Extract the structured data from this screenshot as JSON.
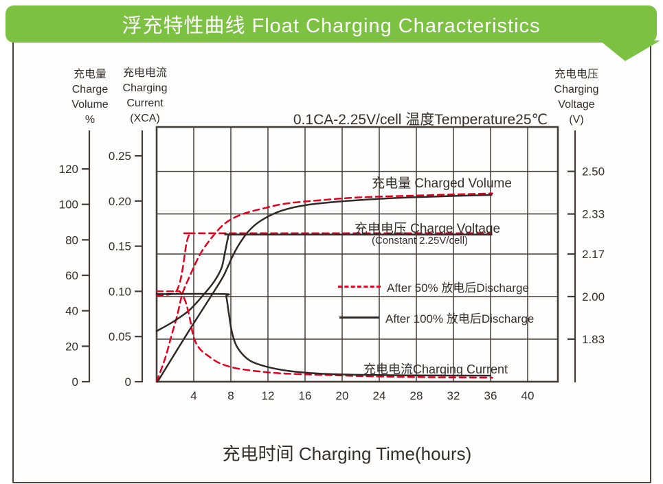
{
  "banner": {
    "title": "浮充特性曲线  Float Charging Characteristics",
    "color": "#7cc142"
  },
  "axis_titles": {
    "volume": "充电量\nCharge\nVolume\n%",
    "current": "充电电流\nCharging\nCurrent\n(XCA)",
    "voltage": "充电电压\nCharging\nVoltage\n(V)"
  },
  "condition": "0.1CA-2.25V/cell  温度Temperature25℃",
  "xlabel": "充电时间  Charging Time(hours)",
  "annotations": {
    "charged_volume": "充电量 Charged Volume",
    "charge_voltage": "充电电压 Charge Voltage",
    "constant_note": "(Constant 2.25V/cell)",
    "legend_50": "After 50% 放电后Discharge",
    "legend_100": "After 100% 放电后Discharge",
    "charging_current": "充电电流Charging Current"
  },
  "colors": {
    "accent_green": "#7cc142",
    "curve_red": "#e4001e",
    "curve_black": "#2f2925",
    "grid": "#453c35",
    "text": "#352e29"
  },
  "chart_data": {
    "type": "line",
    "title": "Float Charging Characteristics 浮充特性曲线",
    "condition": "0.1CA-2.25V/cell, Temperature 25°C",
    "xlabel": "Charging Time (hours)",
    "x_axis": {
      "ticks": [
        4,
        8,
        12,
        16,
        20,
        24,
        28,
        32,
        36,
        40
      ],
      "range": [
        0,
        43.3
      ],
      "grid": true
    },
    "y_axis_volume": {
      "label": "Charge Volume (%)",
      "ticks": [
        "0",
        "20",
        "40",
        "60",
        "80",
        "100",
        "120"
      ],
      "range": [
        0,
        143
      ]
    },
    "y_axis_current": {
      "label": "Charging Current (XCA)",
      "ticks": [
        "0",
        "0.05",
        "0.10",
        "0.15",
        "0.20",
        "0.25"
      ],
      "range": [
        0,
        0.282
      ]
    },
    "y_axis_voltage": {
      "label": "Charging Voltage (V)",
      "ticks": [
        "2.50",
        "2.33",
        "2.17",
        "2.00",
        "1.83"
      ],
      "range": [
        1.66,
        2.68
      ],
      "grid": true
    },
    "series": [
      {
        "name": "Charged Volume - After 50% Discharge",
        "unit": "percent",
        "color": "#e4001e",
        "dash": "9 6",
        "points": [
          [
            0,
            0
          ],
          [
            0.9,
            13
          ],
          [
            1.6,
            26
          ],
          [
            2.2,
            37
          ],
          [
            2.8,
            50
          ],
          [
            3.7,
            61
          ],
          [
            4.7,
            72
          ],
          [
            5.9,
            81
          ],
          [
            7.3,
            89
          ],
          [
            9,
            94
          ],
          [
            11.3,
            97.5
          ],
          [
            14,
            100.5
          ],
          [
            18,
            102.5
          ],
          [
            22,
            104
          ],
          [
            28,
            105
          ],
          [
            32,
            105.6
          ],
          [
            36.2,
            106.2
          ]
        ]
      },
      {
        "name": "Charged Volume - After 100% Discharge",
        "unit": "percent",
        "color": "#2f2925",
        "dash": "",
        "points": [
          [
            0.1,
            0
          ],
          [
            3.4,
            28
          ],
          [
            6.8,
            56
          ],
          [
            7.6,
            64
          ],
          [
            8.3,
            72
          ],
          [
            9.2,
            80
          ],
          [
            10.2,
            86.5
          ],
          [
            11.6,
            92
          ],
          [
            13.5,
            96.5
          ],
          [
            16,
            99.5
          ],
          [
            19.5,
            101.5
          ],
          [
            24.5,
            103.3
          ],
          [
            30.5,
            104.5
          ],
          [
            36.1,
            105.3
          ]
        ]
      },
      {
        "name": "Charge Voltage - After 50% Discharge (constant 2.25 V/cell)",
        "unit": "volt",
        "color": "#e4001e",
        "dash": "9 6",
        "points": [
          [
            0,
            2.005
          ],
          [
            1.3,
            2.008
          ],
          [
            2.0,
            2.016
          ],
          [
            2.45,
            2.05
          ],
          [
            2.75,
            2.1
          ],
          [
            3.0,
            2.16
          ],
          [
            3.2,
            2.21
          ],
          [
            3.45,
            2.243
          ],
          [
            3.7,
            2.252
          ],
          [
            4.3,
            2.253
          ],
          [
            20,
            2.253
          ],
          [
            36.1,
            2.253
          ]
        ]
      },
      {
        "name": "Charge Voltage - After 100% Discharge (constant 2.25 V/cell)",
        "unit": "volt",
        "color": "#2f2925",
        "dash": "",
        "points": [
          [
            0,
            1.862
          ],
          [
            1.8,
            1.9
          ],
          [
            3.5,
            1.945
          ],
          [
            5.0,
            2.005
          ],
          [
            6.2,
            2.06
          ],
          [
            7.0,
            2.115
          ],
          [
            7.4,
            2.183
          ],
          [
            7.65,
            2.228
          ],
          [
            7.82,
            2.247
          ],
          [
            8.4,
            2.248
          ],
          [
            20,
            2.248
          ],
          [
            36.1,
            2.248
          ]
        ]
      },
      {
        "name": "Charging Current - After 50% Discharge",
        "unit": "ca",
        "color": "#e4001e",
        "dash": "9 6",
        "points": [
          [
            0,
            0.1
          ],
          [
            2.2,
            0.1
          ],
          [
            2.55,
            0.099
          ],
          [
            3.1,
            0.089
          ],
          [
            3.6,
            0.069
          ],
          [
            4.0,
            0.049
          ],
          [
            4.6,
            0.037
          ],
          [
            5.5,
            0.029
          ],
          [
            6.7,
            0.021
          ],
          [
            8.3,
            0.0155
          ],
          [
            10.5,
            0.012
          ],
          [
            13.5,
            0.0092
          ],
          [
            18,
            0.0075
          ],
          [
            23,
            0.006
          ],
          [
            29,
            0.005
          ],
          [
            36.2,
            0.0045
          ]
        ]
      },
      {
        "name": "Charging Current - After 100% Discharge",
        "unit": "ca",
        "color": "#2f2925",
        "dash": "",
        "points": [
          [
            0,
            0.097
          ],
          [
            7.2,
            0.097
          ],
          [
            7.5,
            0.094
          ],
          [
            7.75,
            0.078
          ],
          [
            8.05,
            0.058
          ],
          [
            8.5,
            0.042
          ],
          [
            9.2,
            0.031
          ],
          [
            10.2,
            0.0225
          ],
          [
            11.9,
            0.0165
          ],
          [
            14.2,
            0.012
          ],
          [
            17.6,
            0.009
          ],
          [
            21.6,
            0.0077
          ],
          [
            27,
            0.007
          ],
          [
            36,
            0.0068
          ]
        ]
      }
    ]
  }
}
